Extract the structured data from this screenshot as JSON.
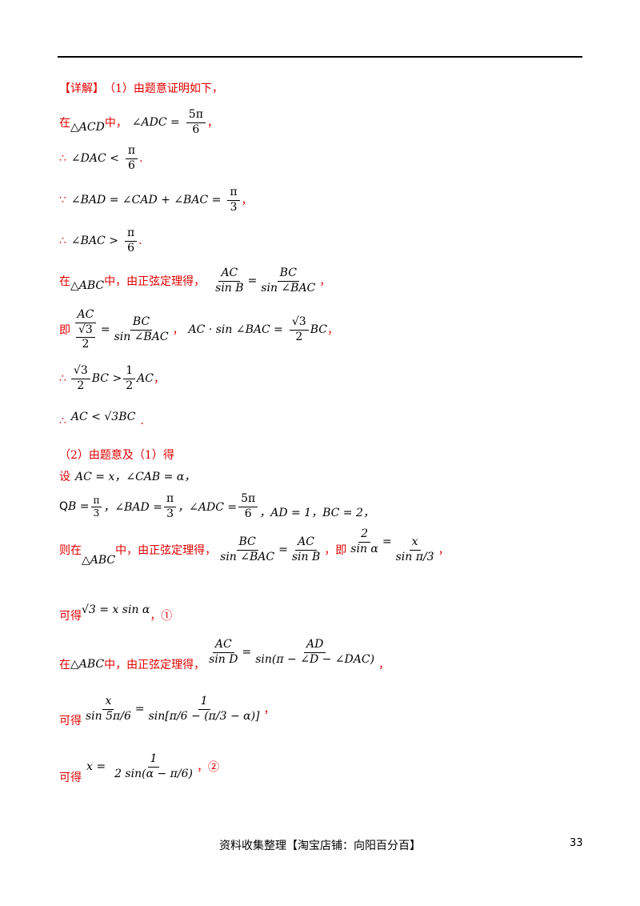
{
  "header_line": "",
  "intro": {
    "tag": "【详解】",
    "text": "（1）由题意证明如下，"
  },
  "lines": {
    "l1_pre": "在",
    "l1_tri": "△ACD",
    "l1_mid": "中，",
    "l1_expr_a": "∠ADC =",
    "l1_frac_num": "5π",
    "l1_frac_den": "6",
    "l1_end": "，",
    "l2_sym": "∴",
    "l2_expr": "∠DAC <",
    "l2_num": "π",
    "l2_den": "6",
    "l2_end": ".",
    "l3_sym": "∵",
    "l3_expr": "∠BAD = ∠CAD + ∠BAC =",
    "l3_num": "π",
    "l3_den": "3",
    "l3_end": "，",
    "l4_sym": "∴",
    "l4_expr": "∠BAC >",
    "l4_num": "π",
    "l4_den": "6",
    "l4_end": ".",
    "l5_pre": "在",
    "l5_tri": "△ABC",
    "l5_text": "中，由正弦定理得，",
    "l5_f1_num": "AC",
    "l5_f1_den": "sin B",
    "l5_f2_num": "BC",
    "l5_f2_den": "sin ∠BAC",
    "l5_end": "，",
    "l6_pre": "即",
    "l6_f1_num": "AC",
    "l6_f1_den_num": "√3",
    "l6_f1_den_den": "2",
    "l6_f2_num": "BC",
    "l6_f2_den": "sin ∠BAC",
    "l6_sep": "，",
    "l6_expr": "AC · sin ∠BAC =",
    "l6_f3_num": "√3",
    "l6_f3_den": "2",
    "l6_tail": "BC",
    "l6_end": "，",
    "l7_sym": "∴",
    "l7_f1_num": "√3",
    "l7_f1_den": "2",
    "l7_mid": "BC >",
    "l7_f2_num": "1",
    "l7_f2_den": "2",
    "l7_tail": "AC",
    "l7_end": "，",
    "l8_sym": "∴",
    "l8_expr": "AC < √3BC",
    "l8_end": ".",
    "p2_head": "（2）由题意及（1）得",
    "p2_l1_pre": "设",
    "p2_l1_expr": "AC = x，∠CAB = α，",
    "p2_l2_q": "Q",
    "p2_l2_b": "B =",
    "p2_l2_bn": "π",
    "p2_l2_bd": "3",
    "p2_l2_c": "，∠BAD =",
    "p2_l2_cn": "π",
    "p2_l2_cd": "3",
    "p2_l2_d": "，∠ADC =",
    "p2_l2_dn": "5π",
    "p2_l2_dd": "6",
    "p2_l2_e": "，AD = 1，BC = 2，",
    "p2_l3_pre": "则在",
    "p2_l3_tri": "△ABC",
    "p2_l3_text": "中，由正弦定理得，",
    "p2_l3_f1n": "BC",
    "p2_l3_f1d": "sin ∠BAC",
    "p2_l3_f2n": "AC",
    "p2_l3_f2d": "sin B",
    "p2_l3_ji": "，即",
    "p2_l3_f3n": "2",
    "p2_l3_f3d": "sin α",
    "p2_l3_f4n": "x",
    "p2_l3_f4d": "sin π/3",
    "p2_l3_end": "，",
    "p2_l4_pre": "可得",
    "p2_l4_expr": "√3 = x sin α",
    "p2_l4_end": "，①",
    "p2_l5_pre": "在",
    "p2_l5_tri": "△ABC",
    "p2_l5_text": "中，由正弦定理得，",
    "p2_l5_f1n": "AC",
    "p2_l5_f1d": "sin D",
    "p2_l5_f2n": "AD",
    "p2_l5_f2d": "sin(π − ∠D − ∠DAC)",
    "p2_l5_end": "，",
    "p2_l6_pre": "可得",
    "p2_l6_f1n": "x",
    "p2_l6_f1d": "sin 5π/6",
    "p2_l6_f2n": "1",
    "p2_l6_f2d": "sin[π/6 − (π/3 − α)]",
    "p2_l6_end": "，",
    "p2_l7_pre": "可得",
    "p2_l7_x": "x =",
    "p2_l7_fn": "1",
    "p2_l7_fd": "2 sin(α − π/6)",
    "p2_l7_end": "，②"
  },
  "footer": {
    "text": "资料收集整理【淘宝店铺：向阳百分百】",
    "page": "33"
  }
}
